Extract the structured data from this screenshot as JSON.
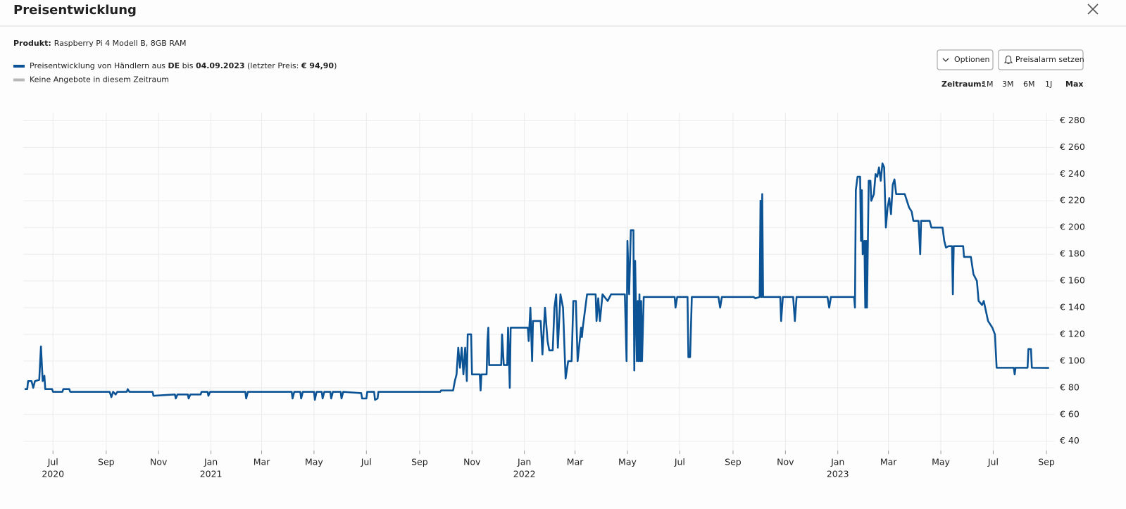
{
  "header": {
    "title": "Preisentwicklung"
  },
  "product": {
    "label": "Produkt:",
    "value": "Raspberry Pi 4 Modell B, 8GB RAM"
  },
  "legend": [
    {
      "color": "#0b5394",
      "parts": [
        {
          "text": "Preisentwicklung von Händlern aus ",
          "bold": false
        },
        {
          "text": "DE",
          "bold": true
        },
        {
          "text": " bis ",
          "bold": false
        },
        {
          "text": "04.09.2023",
          "bold": true
        },
        {
          "text": " (letzter Preis: ",
          "bold": false
        },
        {
          "text": "€ 94,90",
          "bold": true
        },
        {
          "text": ")",
          "bold": false
        }
      ]
    },
    {
      "color": "#b8b8b8",
      "parts": [
        {
          "text": "Keine Angebote in diesem Zeitraum",
          "bold": false
        }
      ]
    }
  ],
  "buttons": [
    "Optionen",
    "Preisalarm setzen"
  ],
  "zeitraum": {
    "label": "Zeitraum:",
    "options": [
      "1M",
      "3M",
      "6M",
      "1J",
      "Max"
    ],
    "active": 4
  },
  "chart_data": {
    "type": "line",
    "x": [
      "2020-05-29",
      "2020-06-01",
      "2020-06-02",
      "2020-06-06",
      "2020-06-08",
      "2020-06-10",
      "2020-06-15",
      "2020-06-17",
      "2020-06-19",
      "2020-06-21",
      "2020-06-22",
      "2020-06-30",
      "2020-07-01",
      "2020-07-12",
      "2020-07-13",
      "2020-07-20",
      "2020-07-21",
      "2020-09-05",
      "2020-09-07",
      "2020-09-09",
      "2020-09-12",
      "2020-09-14",
      "2020-09-25",
      "2020-09-26",
      "2020-09-28",
      "2020-10-25",
      "2020-10-26",
      "2020-11-20",
      "2020-11-21",
      "2020-11-23",
      "2020-12-05",
      "2020-12-06",
      "2020-12-08",
      "2020-12-20",
      "2020-12-21",
      "2020-12-28",
      "2020-12-29",
      "2020-12-31",
      "2021-02-10",
      "2021-02-11",
      "2021-02-13",
      "2021-04-05",
      "2021-04-06",
      "2021-04-08",
      "2021-04-15",
      "2021-04-16",
      "2021-04-18",
      "2021-05-01",
      "2021-05-02",
      "2021-05-04",
      "2021-05-10",
      "2021-05-11",
      "2021-05-13",
      "2021-05-20",
      "2021-05-21",
      "2021-05-23",
      "2021-06-01",
      "2021-06-02",
      "2021-06-04",
      "2021-06-25",
      "2021-06-26",
      "2021-07-01",
      "2021-07-02",
      "2021-07-10",
      "2021-07-11",
      "2021-07-14",
      "2021-07-15",
      "2021-09-25",
      "2021-09-26",
      "2021-10-10",
      "2021-10-12",
      "2021-10-14",
      "2021-10-16",
      "2021-10-18",
      "2021-10-20",
      "2021-10-22",
      "2021-10-24",
      "2021-10-26",
      "2021-10-27",
      "2021-10-31",
      "2021-11-01",
      "2021-11-10",
      "2021-11-11",
      "2021-11-12",
      "2021-11-18",
      "2021-11-19",
      "2021-11-20",
      "2021-11-21",
      "2021-12-05",
      "2021-12-06",
      "2021-12-08",
      "2021-12-12",
      "2021-12-13",
      "2021-12-15",
      "2021-12-16",
      "2022-01-05",
      "2022-01-06",
      "2022-01-08",
      "2022-01-10",
      "2022-01-11",
      "2022-01-20",
      "2022-01-22",
      "2022-01-25",
      "2022-01-28",
      "2022-01-30",
      "2022-02-03",
      "2022-02-05",
      "2022-02-07",
      "2022-02-09",
      "2022-02-12",
      "2022-02-15",
      "2022-02-18",
      "2022-02-21",
      "2022-02-25",
      "2022-02-27",
      "2022-03-02",
      "2022-03-04",
      "2022-03-08",
      "2022-03-09",
      "2022-03-10",
      "2022-03-15",
      "2022-03-25",
      "2022-03-26",
      "2022-03-28",
      "2022-03-30",
      "2022-04-02",
      "2022-04-08",
      "2022-04-12",
      "2022-04-28",
      "2022-04-30",
      "2022-05-01",
      "2022-05-03",
      "2022-05-05",
      "2022-05-08",
      "2022-05-09",
      "2022-05-10",
      "2022-05-12",
      "2022-05-13",
      "2022-05-14",
      "2022-05-15",
      "2022-05-16",
      "2022-05-17",
      "2022-05-18",
      "2022-05-20",
      "2022-06-25",
      "2022-06-26",
      "2022-06-28",
      "2022-07-10",
      "2022-07-11",
      "2022-07-13",
      "2022-07-15",
      "2022-08-15",
      "2022-08-17",
      "2022-08-19",
      "2022-09-25",
      "2022-09-27",
      "2022-10-02",
      "2022-10-03",
      "2022-10-04",
      "2022-10-05",
      "2022-10-06",
      "2022-10-26",
      "2022-10-27",
      "2022-10-29",
      "2022-11-10",
      "2022-11-12",
      "2022-11-14",
      "2022-12-20",
      "2022-12-22",
      "2022-12-24",
      "2023-01-20",
      "2023-01-21",
      "2023-01-22",
      "2023-01-24",
      "2023-01-27",
      "2023-01-28",
      "2023-01-29",
      "2023-01-30",
      "2023-02-01",
      "2023-02-02",
      "2023-02-03",
      "2023-02-04",
      "2023-02-06",
      "2023-02-08",
      "2023-02-09",
      "2023-02-12",
      "2023-02-14",
      "2023-02-16",
      "2023-02-18",
      "2023-02-20",
      "2023-02-22",
      "2023-02-24",
      "2023-02-26",
      "2023-02-28",
      "2023-03-02",
      "2023-03-04",
      "2023-03-06",
      "2023-03-08",
      "2023-03-10",
      "2023-03-20",
      "2023-03-25",
      "2023-03-28",
      "2023-03-30",
      "2023-04-05",
      "2023-04-07",
      "2023-04-08",
      "2023-04-18",
      "2023-04-20",
      "2023-05-03",
      "2023-05-05",
      "2023-05-07",
      "2023-05-10",
      "2023-05-14",
      "2023-05-15",
      "2023-05-16",
      "2023-05-27",
      "2023-05-28",
      "2023-06-05",
      "2023-06-08",
      "2023-06-12",
      "2023-06-14",
      "2023-06-18",
      "2023-06-20",
      "2023-06-25",
      "2023-06-30",
      "2023-07-03",
      "2023-07-05",
      "2023-07-25",
      "2023-07-26",
      "2023-07-27",
      "2023-08-10",
      "2023-08-11",
      "2023-08-14",
      "2023-08-15",
      "2023-09-04"
    ],
    "series": [
      {
        "color": "#0b5394",
        "values": [
          79,
          79,
          85,
          85,
          80,
          85,
          86,
          111,
          85,
          89,
          79,
          79,
          77,
          77,
          79,
          79,
          77,
          77,
          73,
          77,
          75,
          77,
          77,
          79,
          77,
          77,
          74,
          75,
          72,
          75,
          75,
          72,
          75,
          75,
          77,
          77,
          74,
          77,
          77,
          72,
          77,
          77,
          72,
          77,
          77,
          72,
          77,
          77,
          71,
          77,
          77,
          72,
          77,
          77,
          72,
          77,
          77,
          72,
          77,
          76,
          72,
          72,
          77,
          77,
          71,
          72,
          77,
          77,
          78,
          78,
          85,
          90,
          110,
          95,
          110,
          90,
          110,
          85,
          120,
          120,
          90,
          90,
          78,
          90,
          90,
          115,
          125,
          97,
          97,
          120,
          97,
          97,
          125,
          80,
          125,
          125,
          115,
          140,
          100,
          130,
          130,
          105,
          140,
          115,
          108,
          108,
          140,
          150,
          110,
          150,
          140,
          87,
          100,
          100,
          145,
          145,
          100,
          125,
          118,
          125,
          150,
          150,
          130,
          147,
          130,
          150,
          145,
          150,
          150,
          100,
          190,
          150,
          198,
          198,
          93,
          175,
          100,
          145,
          100,
          150,
          100,
          145,
          100,
          148,
          148,
          140,
          148,
          148,
          103,
          103,
          148,
          148,
          140,
          148,
          148,
          147,
          148,
          220,
          148,
          225,
          148,
          148,
          130,
          148,
          148,
          130,
          148,
          148,
          140,
          148,
          148,
          140,
          228,
          238,
          238,
          190,
          228,
          180,
          190,
          140,
          190,
          140,
          235,
          235,
          220,
          225,
          240,
          238,
          245,
          235,
          248,
          245,
          200,
          215,
          222,
          210,
          232,
          236,
          225,
          225,
          215,
          212,
          205,
          205,
          180,
          205,
          205,
          200,
          200,
          190,
          185,
          186,
          186,
          150,
          186,
          186,
          178,
          178,
          165,
          160,
          145,
          142,
          145,
          130,
          125,
          120,
          95,
          95,
          90,
          95,
          95,
          109,
          109,
          95,
          94.9
        ]
      }
    ],
    "xlim": [
      "2020-05-29",
      "2023-09-10"
    ],
    "xticks": [
      {
        "value": "2020-07-01",
        "label": "Jul"
      },
      {
        "value": "2020-09-01",
        "label": "Sep"
      },
      {
        "value": "2020-11-01",
        "label": "Nov"
      },
      {
        "value": "2021-01-01",
        "label": "Jan"
      },
      {
        "value": "2021-03-01",
        "label": "Mar"
      },
      {
        "value": "2021-05-01",
        "label": "May"
      },
      {
        "value": "2021-07-01",
        "label": "Jul"
      },
      {
        "value": "2021-09-01",
        "label": "Sep"
      },
      {
        "value": "2021-11-01",
        "label": "Nov"
      },
      {
        "value": "2022-01-01",
        "label": "Jan"
      },
      {
        "value": "2022-03-01",
        "label": "Mar"
      },
      {
        "value": "2022-05-01",
        "label": "May"
      },
      {
        "value": "2022-07-01",
        "label": "Jul"
      },
      {
        "value": "2022-09-01",
        "label": "Sep"
      },
      {
        "value": "2022-11-01",
        "label": "Nov"
      },
      {
        "value": "2023-01-01",
        "label": "Jan"
      },
      {
        "value": "2023-03-01",
        "label": "Mar"
      },
      {
        "value": "2023-05-01",
        "label": "May"
      },
      {
        "value": "2023-07-01",
        "label": "Jul"
      },
      {
        "value": "2023-09-01",
        "label": "Sep"
      }
    ],
    "x_year_labels": [
      {
        "value": "2020-07-01",
        "label": "2020"
      },
      {
        "value": "2021-01-01",
        "label": "2021"
      },
      {
        "value": "2022-01-01",
        "label": "2022"
      },
      {
        "value": "2023-01-01",
        "label": "2023"
      }
    ],
    "ylim": [
      33,
      286
    ],
    "yticks": [
      {
        "value": 40,
        "label": "€ 40"
      },
      {
        "value": 60,
        "label": "€ 60"
      },
      {
        "value": 80,
        "label": "€ 80"
      },
      {
        "value": 100,
        "label": "€ 100"
      },
      {
        "value": 120,
        "label": "€ 120"
      },
      {
        "value": 140,
        "label": "€ 140"
      },
      {
        "value": 160,
        "label": "€ 160"
      },
      {
        "value": 180,
        "label": "€ 180"
      },
      {
        "value": 200,
        "label": "€ 200"
      },
      {
        "value": 220,
        "label": "€ 220"
      },
      {
        "value": 240,
        "label": "€ 240"
      },
      {
        "value": 260,
        "label": "€ 260"
      },
      {
        "value": 280,
        "label": "€ 280"
      }
    ],
    "grid": true
  }
}
